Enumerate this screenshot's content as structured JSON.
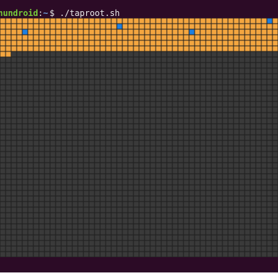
{
  "prompt": {
    "user": "hundroid",
    "separator": ":",
    "path": "~",
    "command": "$ ./taproot.sh"
  }
}
